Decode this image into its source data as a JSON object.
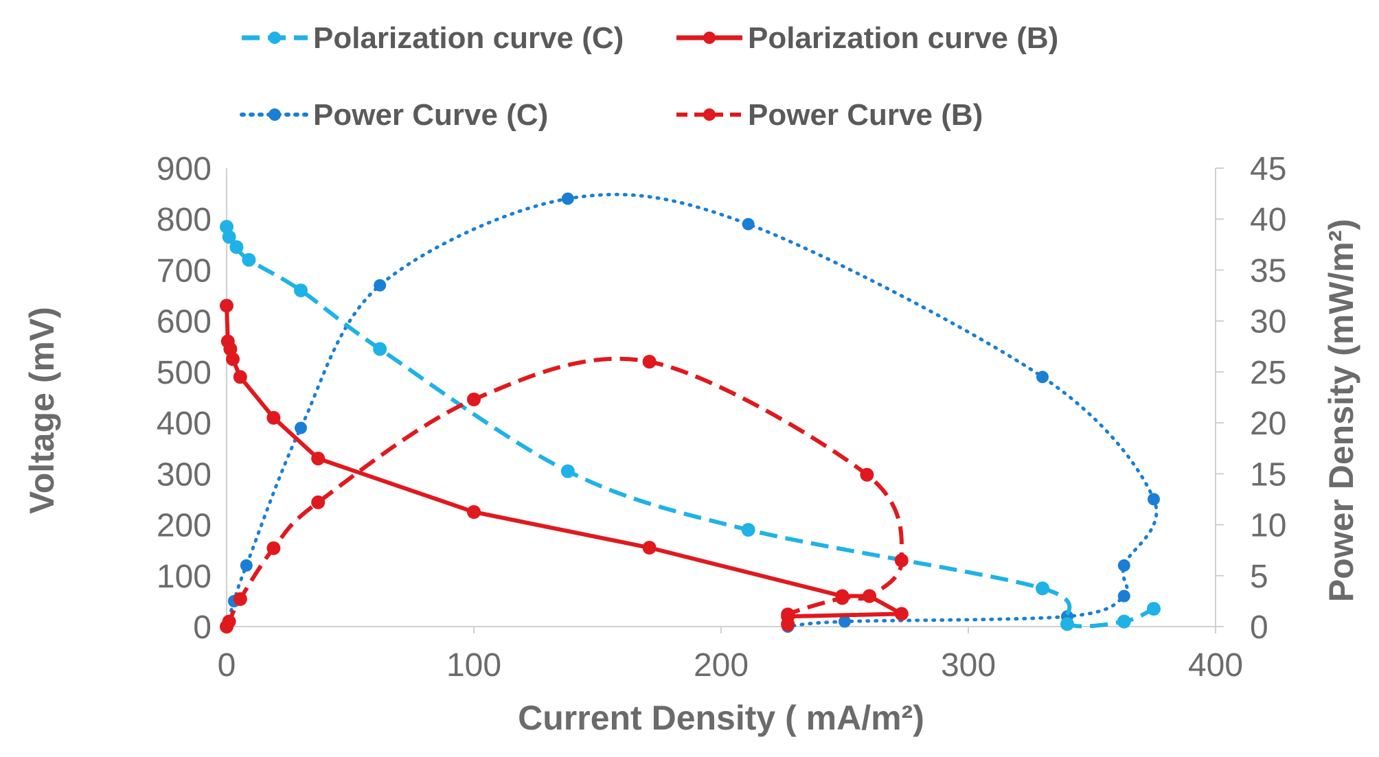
{
  "chart_data": {
    "type": "scatter",
    "xlabel": "Current Density ( mA/m²)",
    "ylabel": "Voltage (mV)",
    "y2label": "Power Density (mW/m²)",
    "xlim": [
      0,
      400
    ],
    "ylim": [
      0,
      900
    ],
    "y2lim": [
      0,
      45
    ],
    "x_ticks": [
      "0",
      "100",
      "200",
      "300",
      "400"
    ],
    "y_ticks": [
      "0",
      "100",
      "200",
      "300",
      "400",
      "500",
      "600",
      "700",
      "800",
      "900"
    ],
    "y2_ticks": [
      "0",
      "5",
      "10",
      "15",
      "20",
      "25",
      "30",
      "35",
      "40",
      "45"
    ],
    "legend_position": "top",
    "series": [
      {
        "name": "Polarization curve (C)",
        "axis": "left",
        "color": "#1fb2e6",
        "style": "dashed",
        "x": [
          0,
          1,
          4,
          9,
          30,
          62,
          138,
          211,
          330,
          340,
          363,
          375
        ],
        "y": [
          785,
          765,
          745,
          720,
          660,
          545,
          305,
          190,
          75,
          5,
          10,
          35
        ]
      },
      {
        "name": "Polarization curve (B)",
        "axis": "left",
        "color": "#e0191e",
        "style": "solid",
        "x": [
          0,
          0.5,
          1.5,
          2.5,
          5.5,
          19,
          37,
          100,
          171,
          249,
          260,
          273,
          227,
          227
        ],
        "y": [
          630,
          560,
          545,
          525,
          490,
          410,
          330,
          225,
          155,
          60,
          60,
          25,
          20,
          5
        ]
      },
      {
        "name": "Power Curve (C)",
        "axis": "right",
        "color": "#1a7fd4",
        "style": "dotted",
        "x": [
          0,
          3,
          8,
          30,
          62,
          138,
          211,
          330,
          375,
          363,
          363,
          340,
          250,
          227
        ],
        "y": [
          0,
          2.5,
          6,
          19.5,
          33.5,
          42,
          39.5,
          24.5,
          12.5,
          6,
          3,
          1,
          0.5,
          0
        ]
      },
      {
        "name": "Power Curve (B)",
        "axis": "right",
        "color": "#e0191e",
        "style": "dashed",
        "x": [
          0,
          1,
          5.5,
          19,
          37,
          100,
          171,
          259,
          273,
          260,
          249,
          227,
          227
        ],
        "y": [
          0,
          0.5,
          2.7,
          7.7,
          12.2,
          22.3,
          26,
          14.9,
          6.5,
          3,
          2.8,
          1.2,
          0.2
        ]
      }
    ]
  }
}
